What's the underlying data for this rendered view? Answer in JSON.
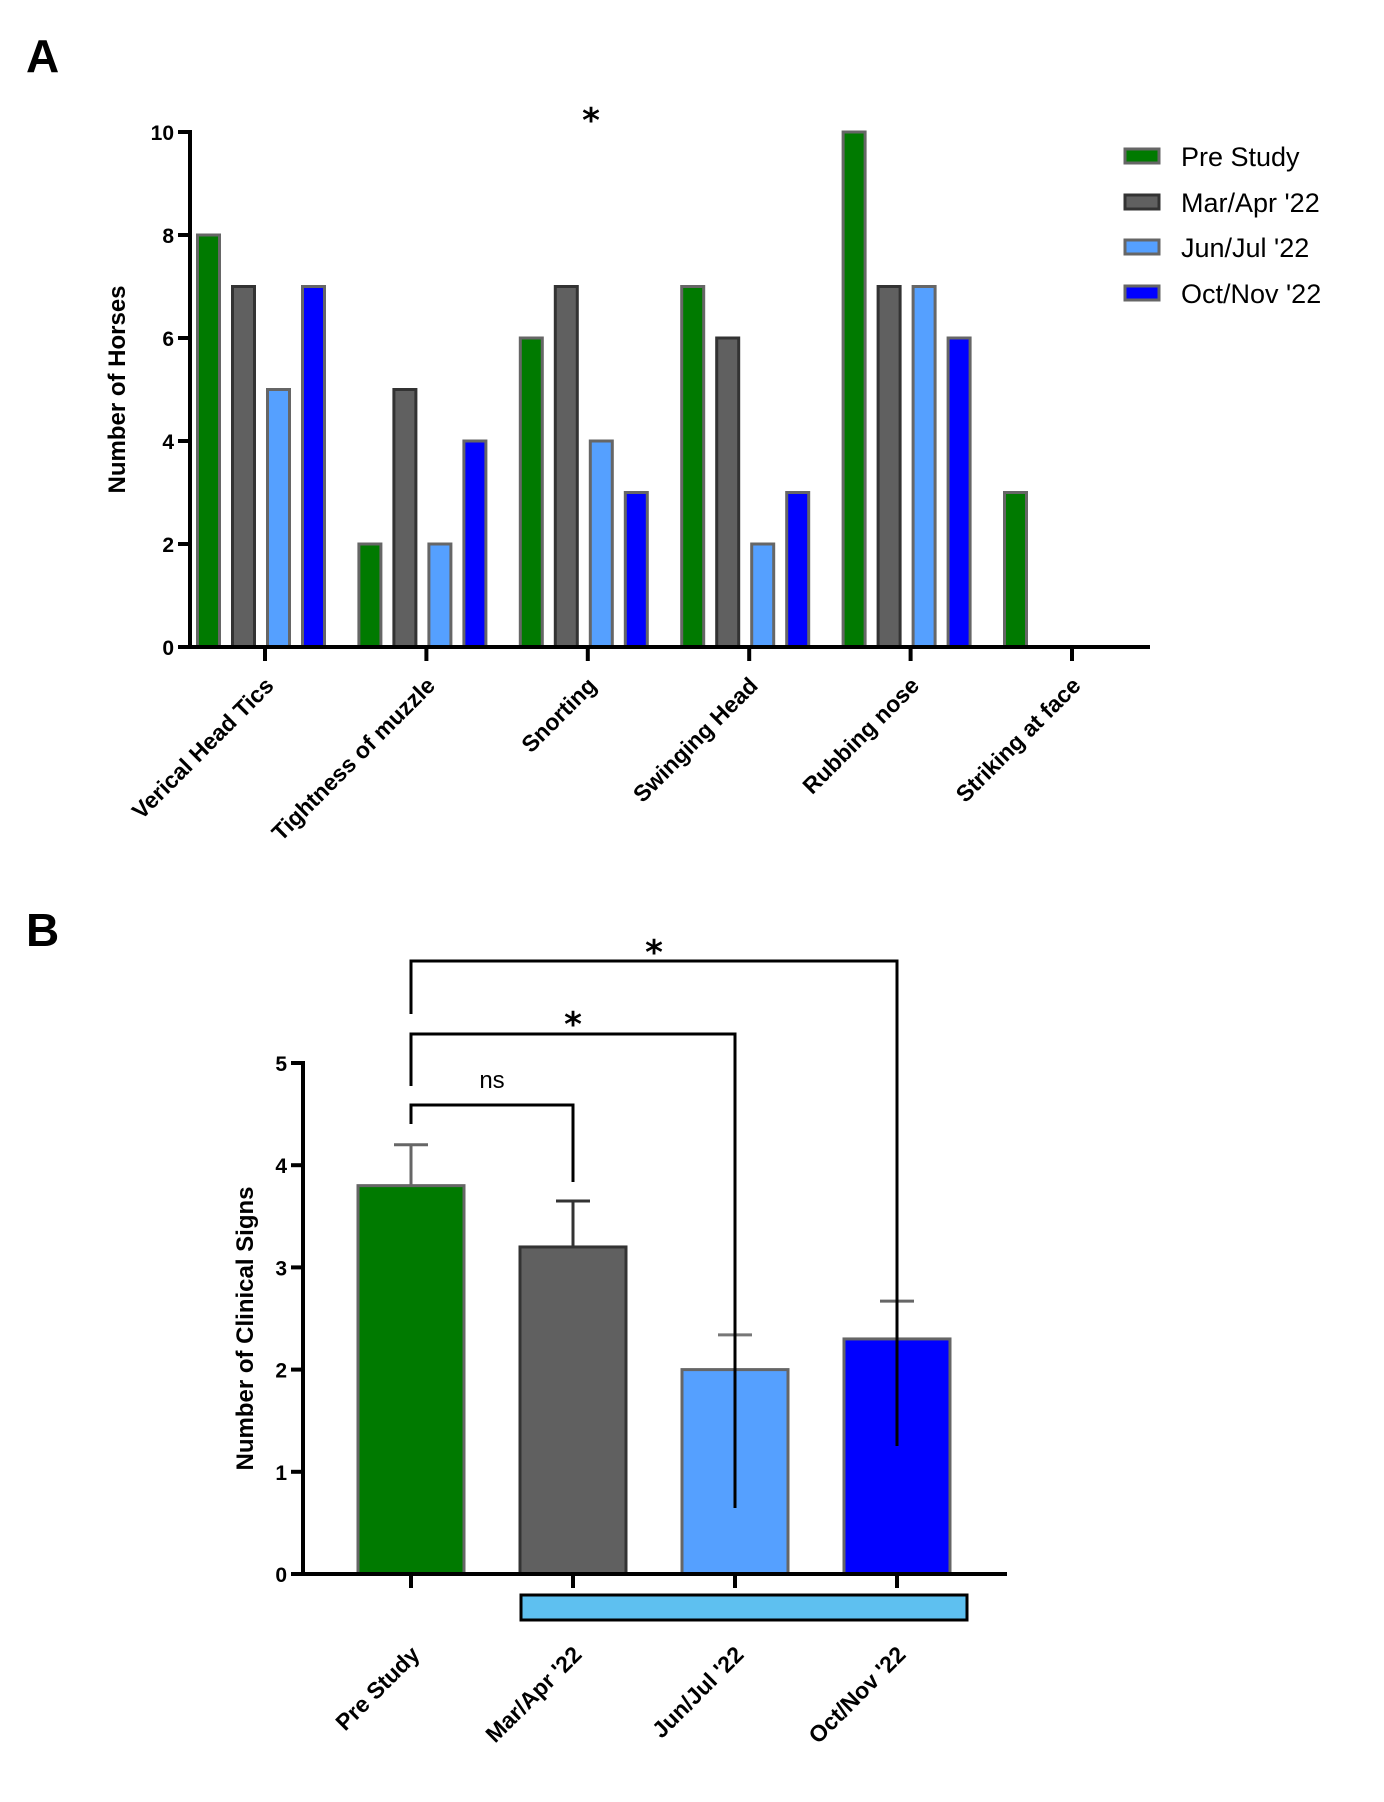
{
  "chart_data": [
    {
      "panel": "A",
      "type": "bar",
      "title": "",
      "xlabel": "",
      "ylabel": "Number of Horses",
      "ylim": [
        0,
        10
      ],
      "yticks": [
        0,
        2,
        4,
        6,
        8,
        10
      ],
      "categories": [
        "Verical Head Tics",
        "Tightness of muzzle",
        "Snorting",
        "Swinging Head",
        "Rubbing nose",
        "Striking at face"
      ],
      "series": [
        {
          "name": "Pre Study",
          "color": "#007a00",
          "values": [
            8,
            2,
            6,
            7,
            10,
            3
          ]
        },
        {
          "name": "Mar/Apr '22",
          "color": "#606060",
          "values": [
            7,
            5,
            7,
            6,
            7,
            0
          ]
        },
        {
          "name": "Jun/Jul '22",
          "color": "#55a0ff",
          "values": [
            5,
            2,
            4,
            2,
            7,
            0
          ]
        },
        {
          "name": "Oct/Nov '22",
          "color": "#0000ff",
          "values": [
            7,
            4,
            3,
            3,
            6,
            0
          ]
        }
      ],
      "legend": "top-right",
      "grid": false,
      "annotations": [
        {
          "text": "*",
          "category": "Snorting",
          "position": "above plot"
        }
      ]
    },
    {
      "panel": "B",
      "type": "bar",
      "title": "",
      "xlabel": "",
      "ylabel": "Number of Clinical Signs",
      "ylim": [
        0,
        5
      ],
      "yticks": [
        0,
        1,
        2,
        3,
        4,
        5
      ],
      "categories": [
        "Pre Study",
        "Mar/Apr '22",
        "Jun/Jul '22",
        "Oct/Nov '22"
      ],
      "values": [
        3.8,
        3.2,
        2.0,
        2.3
      ],
      "error_upper": [
        4.2,
        3.65,
        2.34,
        2.67
      ],
      "colors": [
        "#007a00",
        "#606060",
        "#55a0ff",
        "#0000ff"
      ],
      "grid": false,
      "comparisons": [
        {
          "from": "Pre Study",
          "to": "Mar/Apr '22",
          "label": "ns"
        },
        {
          "from": "Pre Study",
          "to": "Jun/Jul '22",
          "label": "*"
        },
        {
          "from": "Pre Study",
          "to": "Oct/Nov '22",
          "label": "*"
        }
      ],
      "treatment_bar": {
        "span": [
          "Mar/Apr '22",
          "Oct/Nov '22"
        ],
        "color": "#5ec0f0"
      }
    }
  ],
  "labels": {
    "panel_a": "A",
    "panel_b": "B"
  }
}
